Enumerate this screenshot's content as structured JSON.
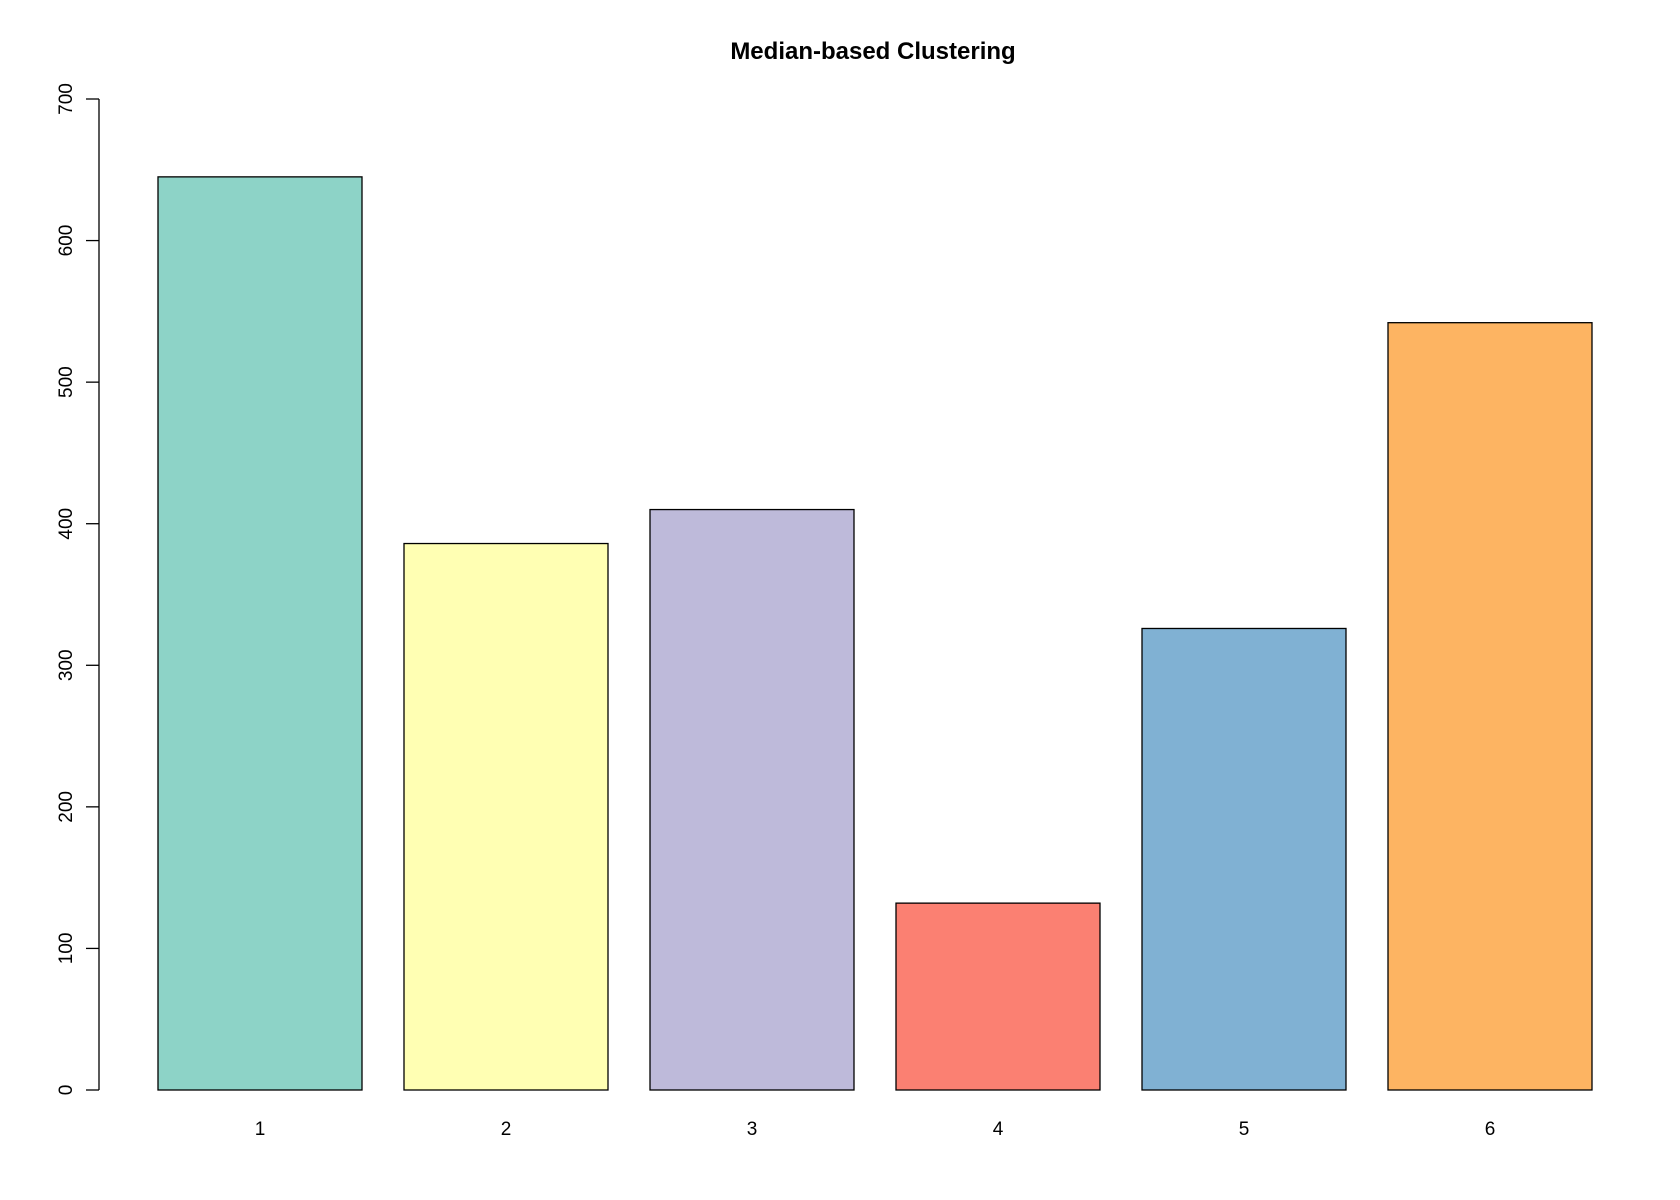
{
  "chart_data": {
    "type": "bar",
    "title": "Median-based Clustering",
    "xlabel": "",
    "ylabel": "",
    "categories": [
      "1",
      "2",
      "3",
      "4",
      "5",
      "6"
    ],
    "values": [
      645,
      386,
      410,
      132,
      326,
      542
    ],
    "colors": [
      "#8DD3C7",
      "#FFFFB3",
      "#BEBADA",
      "#FB8072",
      "#80B1D3",
      "#FDB462"
    ],
    "ylim": [
      0,
      700
    ],
    "yticks": [
      0,
      100,
      200,
      300,
      400,
      500,
      600,
      700
    ],
    "grid": false,
    "legend": "none"
  }
}
